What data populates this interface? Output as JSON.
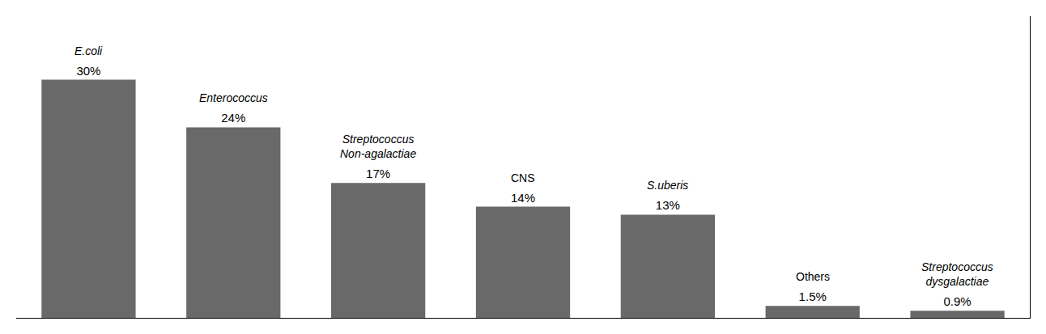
{
  "chart_data": {
    "type": "bar",
    "categories": [
      "E.coli",
      "Enterococcus",
      "Streptococcus\nNon-agalactiae",
      "CNS",
      "S.uberis",
      "Others",
      "Streptococcus\ndysgalactiae"
    ],
    "values": [
      30,
      24,
      17,
      14,
      13,
      1.5,
      0.9
    ],
    "value_labels": [
      "30%",
      "24%",
      "17%",
      "14%",
      "13%",
      "1.5%",
      "0.9%"
    ],
    "data_labels": true,
    "color": "#696969",
    "ylim": [
      0,
      38
    ],
    "tick_labels": false,
    "grid": false
  }
}
